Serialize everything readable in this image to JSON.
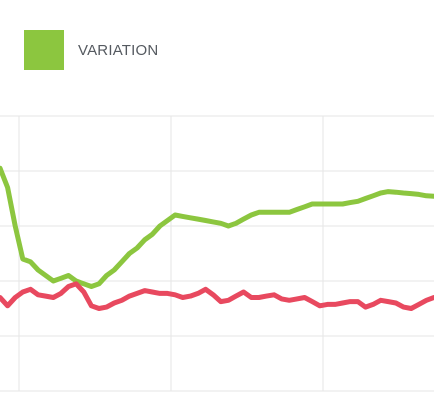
{
  "legend": {
    "items": [
      {
        "label": "VARIATION",
        "color": "#8cc63f"
      }
    ]
  },
  "chart_data": {
    "type": "line",
    "title": "",
    "xlabel": "",
    "ylabel": "",
    "grid": true,
    "legend_position": "top-left",
    "x": [
      0,
      0.5,
      1,
      1.5,
      2,
      2.5,
      3,
      3.5,
      4,
      4.5,
      5,
      5.5,
      6,
      6.5,
      7,
      7.5,
      8,
      8.5,
      9,
      9.5,
      10,
      10.5,
      11,
      11.5,
      12,
      12.5,
      13,
      13.5,
      14,
      14.5,
      15,
      15.5,
      16,
      16.5,
      17,
      17.5,
      18,
      18.5,
      19,
      19.5,
      20,
      20.5,
      21,
      21.5,
      22,
      22.5,
      23,
      23.5,
      24,
      24.5,
      25,
      25.5,
      26,
      26.5,
      27,
      27.5,
      28,
      28.5
    ],
    "xlim": [
      0,
      28.5
    ],
    "ylim": [
      0,
      100
    ],
    "series": [
      {
        "name": "",
        "color": "#8cc63f",
        "values": [
          81,
          74,
          60,
          48,
          47,
          44,
          42,
          40,
          41,
          42,
          40,
          39,
          38,
          39,
          42,
          44,
          47,
          50,
          52,
          55,
          57,
          60,
          62,
          64,
          63.5,
          63,
          62.5,
          62,
          61.5,
          61,
          60,
          61,
          62.5,
          64,
          65,
          65,
          65,
          65,
          65,
          66,
          67,
          68,
          68,
          68,
          68,
          68,
          68.5,
          69,
          70,
          71,
          72,
          72.5,
          72.3,
          72,
          71.8,
          71.5,
          71,
          70.8
        ]
      },
      {
        "name": "",
        "color": "#e8495f",
        "values": [
          34,
          31,
          34,
          36,
          37,
          35,
          34.5,
          34,
          35.5,
          38,
          39,
          36,
          31,
          30,
          30.5,
          32,
          33,
          34.5,
          35.5,
          36.5,
          36,
          35.5,
          35.5,
          35,
          34,
          34.5,
          35.5,
          37,
          35,
          32.5,
          33,
          34.5,
          36,
          34,
          34,
          34.5,
          35,
          33.5,
          33,
          33.5,
          34,
          32.5,
          31,
          31.5,
          31.5,
          32,
          32.5,
          32.5,
          30.5,
          31.5,
          33,
          32.5,
          32,
          30.5,
          30,
          31.5,
          33,
          34
        ]
      }
    ]
  }
}
